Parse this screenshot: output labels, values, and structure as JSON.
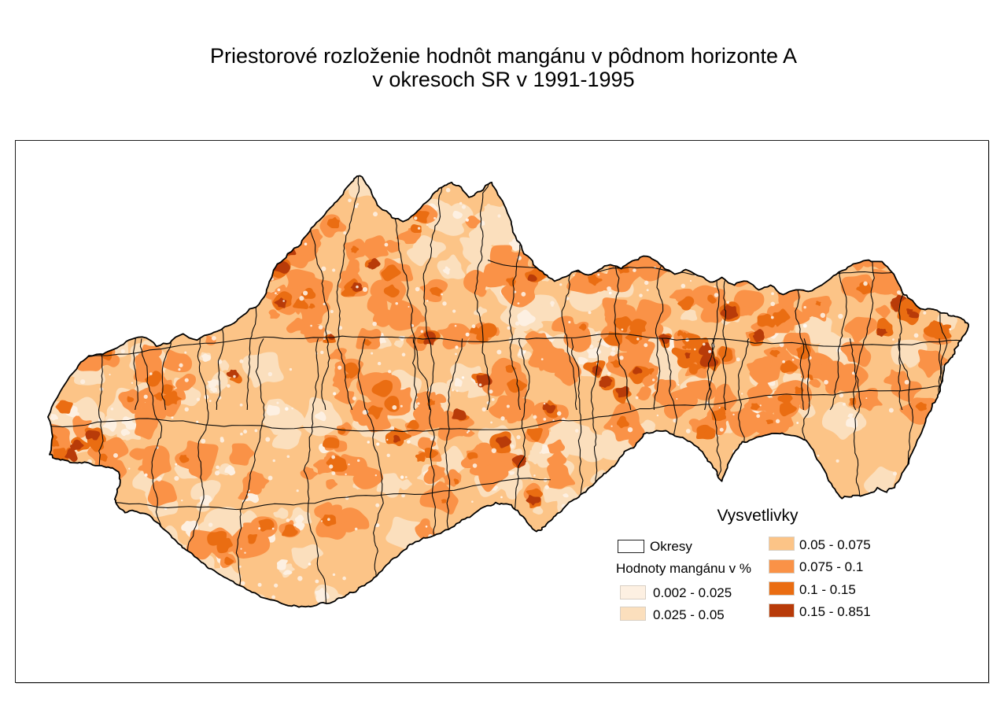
{
  "title": {
    "line1": "Priestorové rozloženie hodnôt mangánu v pôdnom horizonte A",
    "line2": "v okresoch SR v 1991-1995"
  },
  "legend": {
    "title": "Vysvetlivky",
    "districts_label": "Okresy",
    "districts_outline_color": "#000000",
    "layer_label": "Hodnoty mangánu v %",
    "classes": [
      {
        "range": "0.002 - 0.025",
        "color": "#FDF0E2"
      },
      {
        "range": "0.025 - 0.05",
        "color": "#FBDFBD"
      },
      {
        "range": "0.05 - 0.075",
        "color": "#FCC487"
      },
      {
        "range": "0.075 - 0.1",
        "color": "#FA9247"
      },
      {
        "range": "0.1 - 0.15",
        "color": "#EA6D12"
      },
      {
        "range": "0.15 - 0.851",
        "color": "#B83B09"
      }
    ]
  }
}
